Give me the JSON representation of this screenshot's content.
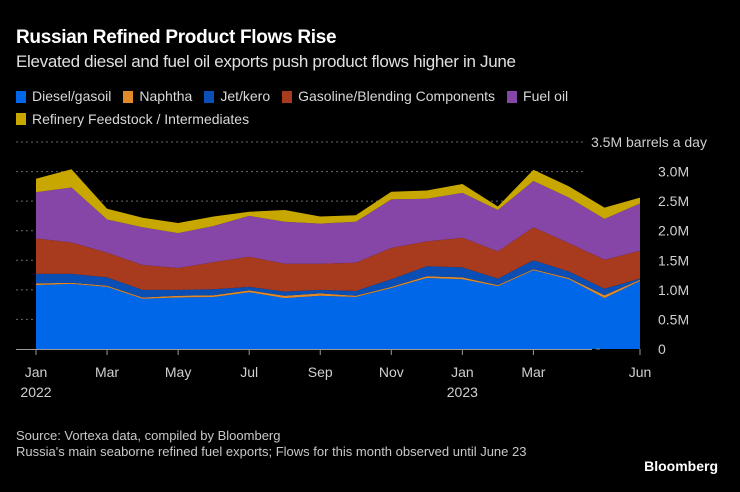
{
  "header": {
    "title": "Russian Refined Product Flows Rise",
    "subtitle": "Elevated diesel and fuel oil exports push product flows higher in June"
  },
  "footer": {
    "source": "Source: Vortexa data, compiled by Bloomberg",
    "note": "Russia's main seaborne refined fuel exports; Flows for this month observed until June 23",
    "brand": "Bloomberg"
  },
  "chart_data": {
    "type": "area",
    "stacked": true,
    "title": "Russian Refined Product Flows Rise",
    "subtitle": "Elevated diesel and fuel oil exports push product flows higher in June",
    "unit_label": "barrels a day",
    "ylabel": "barrels a day",
    "xlabel": "",
    "ylim": [
      0,
      3500000
    ],
    "grid": true,
    "legend_position": "top",
    "x": [
      "2022-01",
      "2022-02",
      "2022-03",
      "2022-04",
      "2022-05",
      "2022-06",
      "2022-07",
      "2022-08",
      "2022-09",
      "2022-10",
      "2022-11",
      "2022-12",
      "2023-01",
      "2023-02",
      "2023-03",
      "2023-04",
      "2023-05",
      "2023-06"
    ],
    "x_ticks": [
      {
        "label": "Jan",
        "sub": "2022",
        "index": 0
      },
      {
        "label": "Mar",
        "sub": "",
        "index": 2
      },
      {
        "label": "May",
        "sub": "",
        "index": 4
      },
      {
        "label": "Jul",
        "sub": "",
        "index": 6
      },
      {
        "label": "Sep",
        "sub": "",
        "index": 8
      },
      {
        "label": "Nov",
        "sub": "",
        "index": 10
      },
      {
        "label": "Jan",
        "sub": "2023",
        "index": 12
      },
      {
        "label": "Mar",
        "sub": "",
        "index": 14
      },
      {
        "label": "Jun",
        "sub": "",
        "index": 17
      }
    ],
    "y_ticks": [
      {
        "value": 0,
        "label": "0"
      },
      {
        "value": 500000,
        "label": "0.5M"
      },
      {
        "value": 1000000,
        "label": "1.0M"
      },
      {
        "value": 1500000,
        "label": "1.5M"
      },
      {
        "value": 2000000,
        "label": "2.0M"
      },
      {
        "value": 2500000,
        "label": "2.5M"
      },
      {
        "value": 3000000,
        "label": "3.0M"
      },
      {
        "value": 3500000,
        "label": "3.5M"
      }
    ],
    "series": [
      {
        "name": "Diesel/gasoil",
        "color": "#0068e8",
        "values": [
          1080000,
          1100000,
          1050000,
          850000,
          870000,
          880000,
          960000,
          860000,
          900000,
          880000,
          1030000,
          1200000,
          1180000,
          1060000,
          1330000,
          1180000,
          860000,
          1150000
        ]
      },
      {
        "name": "Naphtha",
        "color": "#e08a2a",
        "values": [
          30000,
          20000,
          20000,
          20000,
          30000,
          30000,
          30000,
          40000,
          40000,
          20000,
          20000,
          30000,
          30000,
          20000,
          20000,
          20000,
          50000,
          20000
        ]
      },
      {
        "name": "Jet/kero",
        "color": "#0a4fb5",
        "values": [
          160000,
          150000,
          140000,
          130000,
          100000,
          100000,
          60000,
          70000,
          60000,
          80000,
          130000,
          170000,
          170000,
          110000,
          150000,
          110000,
          110000,
          20000
        ]
      },
      {
        "name": "Gasoline/Blending Components",
        "color": "#a83a1e",
        "values": [
          600000,
          530000,
          420000,
          420000,
          370000,
          460000,
          510000,
          470000,
          440000,
          480000,
          530000,
          420000,
          500000,
          460000,
          560000,
          480000,
          490000,
          470000
        ]
      },
      {
        "name": "Fuel oil",
        "color": "#8646a8",
        "values": [
          780000,
          930000,
          560000,
          640000,
          590000,
          610000,
          690000,
          710000,
          680000,
          690000,
          820000,
          720000,
          760000,
          700000,
          780000,
          770000,
          690000,
          800000
        ]
      },
      {
        "name": "Refinery Feedstock / Intermediates",
        "color": "#c8a800",
        "values": [
          230000,
          310000,
          180000,
          160000,
          170000,
          160000,
          70000,
          200000,
          120000,
          110000,
          130000,
          140000,
          150000,
          60000,
          190000,
          190000,
          190000,
          100000
        ]
      }
    ]
  }
}
